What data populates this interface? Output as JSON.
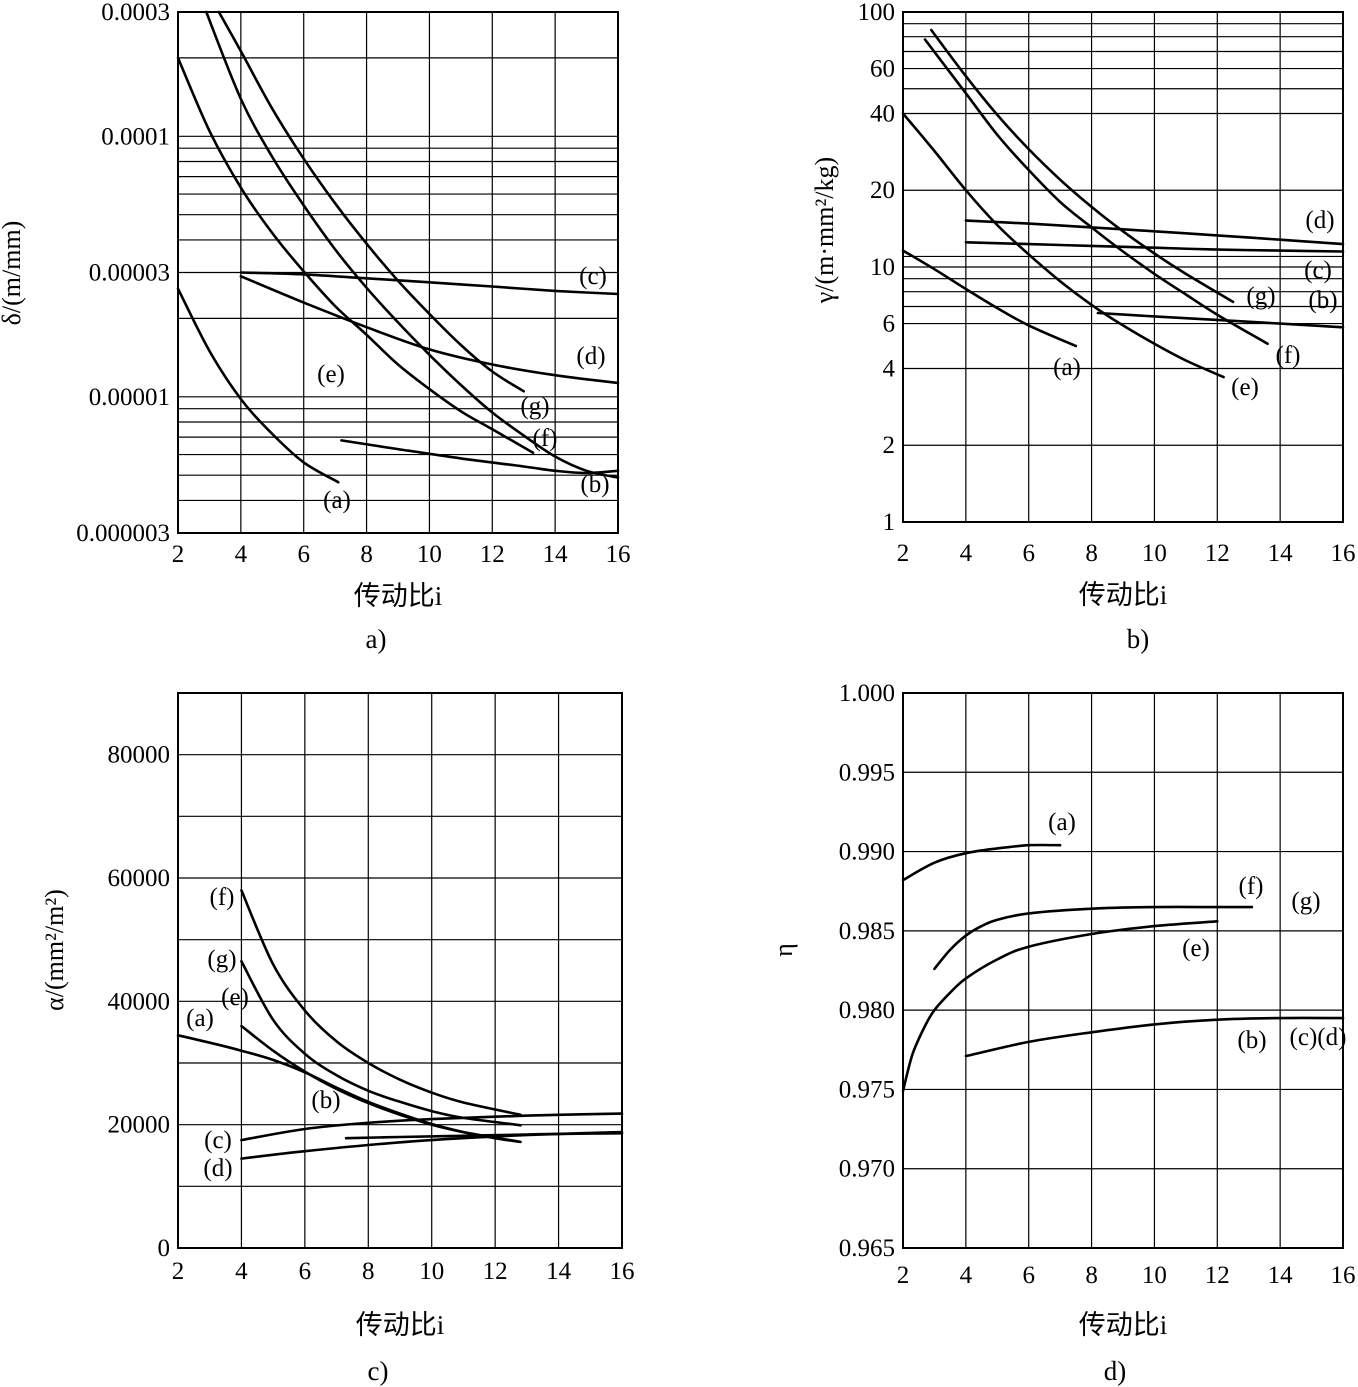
{
  "chart_data": [
    {
      "id": "a",
      "type": "line",
      "caption": "a)",
      "xlabel": "传动比i",
      "ylabel": "δ/(m/mm)",
      "yscale": "log",
      "xlim": [
        2,
        16
      ],
      "ylim": [
        3e-06,
        0.0003
      ],
      "xticks": [
        2,
        4,
        6,
        8,
        10,
        12,
        14,
        16
      ],
      "xtick_labels": [
        "2",
        "4",
        "6",
        "8",
        "10",
        "12",
        "14",
        "16"
      ],
      "ytick_labels": [
        {
          "value": 0.0003,
          "label": "0.0003"
        },
        {
          "value": 0.0001,
          "label": "0.0001"
        },
        {
          "value": 3e-05,
          "label": "0.00003"
        },
        {
          "value": 1e-05,
          "label": "0.00001"
        },
        {
          "value": 3e-06,
          "label": "0.000003"
        }
      ],
      "ygrid": [
        3e-06,
        4e-06,
        5e-06,
        6e-06,
        7e-06,
        8e-06,
        9e-06,
        1e-05,
        2e-05,
        3e-05,
        4e-05,
        5e-05,
        6e-05,
        7e-05,
        8e-05,
        9e-05,
        0.0001,
        0.0002,
        0.0003
      ],
      "series": [
        {
          "name": "(a)",
          "x": [
            2,
            3,
            4,
            5,
            6,
            7.1
          ],
          "y": [
            2.6e-05,
            1.5e-05,
            9.8e-06,
            7.2e-06,
            5.6e-06,
            4.7e-06
          ]
        },
        {
          "name": "(b)",
          "x": [
            7.2,
            9,
            11,
            13,
            14,
            15,
            16
          ],
          "y": [
            6.8e-06,
            6.3e-06,
            5.8e-06,
            5.4e-06,
            5.2e-06,
            5.1e-06,
            5.2e-06
          ]
        },
        {
          "name": "(c)",
          "x": [
            4,
            6,
            8,
            10,
            12,
            14,
            16
          ],
          "y": [
            3e-05,
            2.95e-05,
            2.85e-05,
            2.75e-05,
            2.65e-05,
            2.55e-05,
            2.48e-05
          ]
        },
        {
          "name": "(d)",
          "x": [
            4,
            6,
            8,
            10,
            12,
            14,
            16
          ],
          "y": [
            2.9e-05,
            2.3e-05,
            1.85e-05,
            1.52e-05,
            1.33e-05,
            1.21e-05,
            1.13e-05
          ]
        },
        {
          "name": "(e)",
          "x": [
            2,
            3,
            4,
            5,
            6,
            7,
            8,
            9,
            10,
            11,
            12,
            13.3
          ],
          "y": [
            0.0002,
            0.000105,
            6.35e-05,
            4.25e-05,
            3.03e-05,
            2.23e-05,
            1.73e-05,
            1.33e-05,
            1.07e-05,
            8.8e-06,
            7.5e-06,
            6.1e-06
          ]
        },
        {
          "name": "(f)",
          "x": [
            2.9,
            4,
            5,
            6,
            7,
            8,
            9,
            10,
            11,
            12,
            13,
            14,
            15,
            16
          ],
          "y": [
            0.0003,
            0.000139,
            8.33e-05,
            5.43e-05,
            3.68e-05,
            2.62e-05,
            1.93e-05,
            1.45e-05,
            1.11e-05,
            8.7e-06,
            7.1e-06,
            5.9e-06,
            5.2e-06,
            4.9e-06
          ]
        },
        {
          "name": "(g)",
          "x": [
            3.3,
            4,
            5,
            6,
            7,
            8,
            9,
            10,
            11,
            12,
            13
          ],
          "y": [
            0.0003,
            0.000212,
            0.0001275,
            8.2e-05,
            5.53e-05,
            3.87e-05,
            2.79e-05,
            2.08e-05,
            1.58e-05,
            1.25e-05,
            1.05e-05
          ]
        }
      ],
      "labels": [
        "(a)",
        "(b)",
        "(c)",
        "(d)",
        "(e)",
        "(f)",
        "(g)"
      ]
    },
    {
      "id": "b",
      "type": "line",
      "caption": "b)",
      "xlabel": "传动比i",
      "ylabel": "γ/(m·mm²/kg)",
      "yscale": "log",
      "xlim": [
        2,
        16
      ],
      "ylim": [
        1,
        100
      ],
      "xticks": [
        2,
        4,
        6,
        8,
        10,
        12,
        14,
        16
      ],
      "xtick_labels": [
        "2",
        "4",
        "6",
        "8",
        "10",
        "12",
        "14",
        "16"
      ],
      "ytick_labels": [
        {
          "value": 100,
          "label": "100"
        },
        {
          "value": 60,
          "label": "60"
        },
        {
          "value": 40,
          "label": "40"
        },
        {
          "value": 20,
          "label": "20"
        },
        {
          "value": 10,
          "label": "10"
        },
        {
          "value": 6,
          "label": "6"
        },
        {
          "value": 4,
          "label": "4"
        },
        {
          "value": 2,
          "label": "2"
        },
        {
          "value": 1,
          "label": "1"
        }
      ],
      "ygrid": [
        1,
        2,
        4,
        6,
        7,
        8,
        9,
        10,
        11,
        20,
        40,
        50,
        60,
        70,
        80,
        90,
        100
      ],
      "series": [
        {
          "name": "(a)",
          "x": [
            2,
            3,
            4,
            5,
            6,
            7.5
          ],
          "y": [
            11.6,
            9.8,
            8.2,
            6.9,
            5.9,
            4.9
          ]
        },
        {
          "name": "(b)",
          "x": [
            8.2,
            10,
            12,
            14,
            16
          ],
          "y": [
            6.6,
            6.4,
            6.2,
            6.0,
            5.8
          ]
        },
        {
          "name": "(c)",
          "x": [
            4,
            6,
            8,
            10,
            12,
            14,
            16
          ],
          "y": [
            12.5,
            12.3,
            12.1,
            11.9,
            11.7,
            11.6,
            11.5
          ]
        },
        {
          "name": "(d)",
          "x": [
            4,
            6,
            8,
            10,
            12,
            14,
            16
          ],
          "y": [
            15.2,
            14.8,
            14.3,
            13.8,
            13.3,
            12.8,
            12.3
          ]
        },
        {
          "name": "(e)",
          "x": [
            2,
            3,
            4,
            5,
            6,
            7,
            8,
            9,
            10,
            11,
            12.2
          ],
          "y": [
            40,
            28.5,
            20,
            14.6,
            11.2,
            8.8,
            7.1,
            5.9,
            5.0,
            4.3,
            3.7
          ]
        },
        {
          "name": "(f)",
          "x": [
            2.7,
            4,
            5,
            6,
            7,
            8,
            9,
            10,
            11,
            12,
            13.6
          ],
          "y": [
            78,
            48,
            33,
            24,
            18,
            14.3,
            11.5,
            9.4,
            7.8,
            6.5,
            5.0
          ]
        },
        {
          "name": "(g)",
          "x": [
            2.9,
            4,
            5,
            6,
            7,
            8,
            9,
            10,
            11,
            12.5
          ],
          "y": [
            85,
            56,
            39.5,
            29,
            22,
            17.2,
            13.8,
            11.3,
            9.4,
            7.3
          ]
        }
      ],
      "labels": [
        "(a)",
        "(b)",
        "(c)",
        "(d)",
        "(e)",
        "(f)",
        "(g)"
      ]
    },
    {
      "id": "c",
      "type": "line",
      "caption": "c)",
      "xlabel": "传动比i",
      "ylabel": "α/(mm²/m²)",
      "yscale": "linear",
      "xlim": [
        2,
        16
      ],
      "ylim": [
        0,
        90000
      ],
      "xticks": [
        2,
        4,
        6,
        8,
        10,
        12,
        14,
        16
      ],
      "xtick_labels": [
        "2",
        "4",
        "6",
        "8",
        "10",
        "12",
        "14",
        "16"
      ],
      "ytick_labels": [
        {
          "value": 80000,
          "label": "80000"
        },
        {
          "value": 60000,
          "label": "60000"
        },
        {
          "value": 40000,
          "label": "40000"
        },
        {
          "value": 20000,
          "label": "20000"
        },
        {
          "value": 0,
          "label": "0"
        }
      ],
      "ygrid": [
        0,
        10000,
        20000,
        30000,
        40000,
        50000,
        60000,
        70000,
        80000
      ],
      "series": [
        {
          "name": "(a)",
          "x": [
            2,
            3,
            4,
            5,
            6,
            7,
            8,
            9,
            10,
            11,
            12,
            12.8
          ],
          "y": [
            34500,
            33300,
            32000,
            30500,
            28500,
            26000,
            23700,
            21800,
            20100,
            18800,
            17800,
            17200
          ]
        },
        {
          "name": "(b)",
          "x": [
            7.3,
            9,
            11,
            13,
            14,
            16
          ],
          "y": [
            17800,
            18000,
            18200,
            18400,
            18500,
            18600
          ]
        },
        {
          "name": "(c)",
          "x": [
            4,
            6,
            8,
            10,
            12,
            14,
            16
          ],
          "y": [
            17500,
            19300,
            20300,
            20900,
            21300,
            21600,
            21800
          ]
        },
        {
          "name": "(d)",
          "x": [
            4,
            6,
            8,
            10,
            12,
            14,
            16
          ],
          "y": [
            14500,
            15700,
            16700,
            17500,
            18100,
            18500,
            18800
          ]
        },
        {
          "name": "(e)",
          "x": [
            4,
            5,
            6,
            7,
            8,
            9,
            10,
            11,
            12.7
          ],
          "y": [
            36000,
            32000,
            28600,
            25800,
            23500,
            21600,
            20000,
            18800,
            17300
          ]
        },
        {
          "name": "(f)",
          "x": [
            4,
            5,
            6,
            7,
            8,
            9,
            10,
            11,
            12.8
          ],
          "y": [
            58000,
            46000,
            38500,
            33500,
            30000,
            27300,
            25200,
            23600,
            21600
          ]
        },
        {
          "name": "(g)",
          "x": [
            4,
            5,
            6,
            7,
            8,
            9,
            10,
            11,
            12.8
          ],
          "y": [
            46500,
            37000,
            31500,
            28000,
            25500,
            23700,
            22200,
            21100,
            19900
          ]
        }
      ],
      "labels": [
        "(f)",
        "(g)",
        "(a)",
        "(e)",
        "(b)",
        "(c)",
        "(d)"
      ]
    },
    {
      "id": "d",
      "type": "line",
      "caption": "d)",
      "xlabel": "传动比i",
      "ylabel": "η",
      "yscale": "linear",
      "xlim": [
        2,
        16
      ],
      "ylim": [
        0.965,
        1.0
      ],
      "xticks": [
        2,
        4,
        6,
        8,
        10,
        12,
        14,
        16
      ],
      "xtick_labels": [
        "2",
        "4",
        "6",
        "8",
        "10",
        "12",
        "14",
        "16"
      ],
      "ytick_labels": [
        {
          "value": 1.0,
          "label": "1.000"
        },
        {
          "value": 0.995,
          "label": "0.995"
        },
        {
          "value": 0.99,
          "label": "0.990"
        },
        {
          "value": 0.985,
          "label": "0.985"
        },
        {
          "value": 0.98,
          "label": "0.980"
        },
        {
          "value": 0.975,
          "label": "0.975"
        },
        {
          "value": 0.97,
          "label": "0.970"
        },
        {
          "value": 0.965,
          "label": "0.965"
        }
      ],
      "ygrid": [
        0.965,
        0.97,
        0.975,
        0.98,
        0.985,
        0.99,
        0.995,
        1.0
      ],
      "series": [
        {
          "name": "(a)",
          "x": [
            2,
            3,
            4,
            5,
            6,
            7
          ],
          "y": [
            0.9882,
            0.9893,
            0.9899,
            0.9902,
            0.9904,
            0.9904
          ]
        },
        {
          "name": "(b)(c)(d)",
          "x": [
            4,
            6,
            8,
            10,
            12,
            14,
            16
          ],
          "y": [
            0.9771,
            0.978,
            0.9786,
            0.9791,
            0.9794,
            0.9795,
            0.9795
          ]
        },
        {
          "name": "(e)",
          "x": [
            2,
            2.3,
            2.7,
            3,
            3.5,
            4,
            5,
            6,
            8,
            10,
            12
          ],
          "y": [
            0.9749,
            0.9772,
            0.979,
            0.98,
            0.9811,
            0.982,
            0.9832,
            0.984,
            0.9848,
            0.9853,
            0.9856
          ]
        },
        {
          "name": "(f)(g)",
          "x": [
            3,
            3.5,
            4,
            4.5,
            5,
            6,
            8,
            10,
            12,
            13.1
          ],
          "y": [
            0.9826,
            0.9838,
            0.9847,
            0.9853,
            0.9857,
            0.9861,
            0.9864,
            0.9865,
            0.9865,
            0.9865
          ]
        }
      ],
      "labels": [
        "(a)",
        "(f)",
        "(g)",
        "(e)",
        "(b)",
        "(c)(d)"
      ]
    }
  ]
}
